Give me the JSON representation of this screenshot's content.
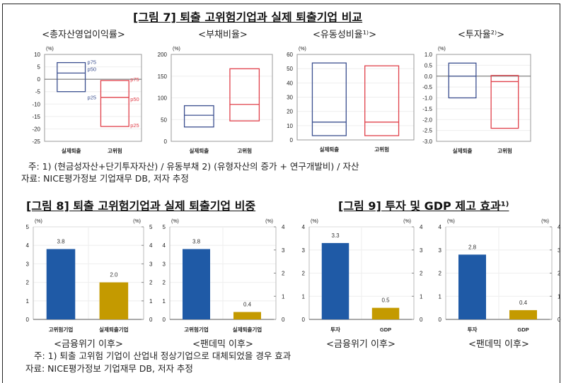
{
  "fig7": {
    "title": "[그림 7] 퇴출 고위험기업과 실제 퇴출기업 비교",
    "note1": "주: 1) (현금성자산+단기투자자산) / 유동부채   2) (유형자산의 증가 + 연구개발비) / 자산",
    "source": "자료: NICE평가정보 기업재무 DB, 저자 추정"
  },
  "fig8": {
    "title": "[그림 8] 퇴출 고위험기업과 실제 퇴출기업 비중"
  },
  "fig9": {
    "title": "[그림 9] 투자 및 GDP 제고 효과¹⁾"
  },
  "bottom_note": "주: 1) 퇴출 고위험 기업이 산업내 정상기업으로 대체되었을 경우 효과",
  "bottom_source": "자료: NICE평가정보 기업재무 DB, 저자 추정",
  "colors": {
    "blue_box": "#3b4f8f",
    "red_box": "#e0404a",
    "blue_bar": "#1f5aa6",
    "gold_bar": "#c49a00"
  },
  "chart_data": [
    {
      "type": "box",
      "title": "<총자산영업이익률>",
      "unit": "(%)",
      "ylim": [
        -25,
        10
      ],
      "yticks": [
        10,
        5,
        0,
        -5,
        -10,
        -15,
        -20,
        -25
      ],
      "tick_labels": [
        "10",
        "5",
        "0",
        "-5",
        "-10",
        "-15",
        "-20",
        "-25"
      ],
      "zero_line": true,
      "categories": [
        "실제퇴출",
        "고위험"
      ],
      "series": [
        {
          "p25": -5,
          "p50": 2.5,
          "p75": 6.7
        },
        {
          "p25": -19,
          "p50": -7.3,
          "p75": -0.5
        }
      ],
      "labels": [
        [
          "p75",
          "p50",
          "p25"
        ],
        [
          "p75",
          "p50",
          "p25"
        ]
      ]
    },
    {
      "type": "box",
      "title": "<부채비율>",
      "unit": "(%)",
      "ylim": [
        0,
        200
      ],
      "yticks": [
        200,
        150,
        100,
        50,
        0
      ],
      "tick_labels": [
        "200",
        "150",
        "100",
        "50",
        "0"
      ],
      "categories": [
        "실제퇴출",
        "고위험"
      ],
      "series": [
        {
          "p25": 33,
          "p50": 60,
          "p75": 82
        },
        {
          "p25": 47,
          "p50": 85,
          "p75": 167
        }
      ]
    },
    {
      "type": "box",
      "title": "<유동성비율¹⁾>",
      "unit": "(%)",
      "ylim": [
        0,
        60
      ],
      "yticks": [
        60,
        50,
        40,
        30,
        20,
        10,
        0
      ],
      "tick_labels": [
        "60",
        "50",
        "40",
        "30",
        "20",
        "10",
        "0"
      ],
      "categories": [
        "실제퇴출",
        "고위험"
      ],
      "series": [
        {
          "p25": 3,
          "p50": 12.5,
          "p75": 54
        },
        {
          "p25": 3,
          "p50": 12.5,
          "p75": 52
        }
      ]
    },
    {
      "type": "box",
      "title": "<투자율²⁾>",
      "unit": "(%)",
      "ylim": [
        -3,
        1
      ],
      "yticks": [
        1,
        0.5,
        0,
        -0.5,
        -1,
        -1.5,
        -2,
        -2.5,
        -3
      ],
      "tick_labels": [
        "1.0",
        "0.5",
        "0.0",
        "-0.5",
        "-1.0",
        "-1.5",
        "-2.0",
        "-2.5",
        "-3.0"
      ],
      "zero_line": true,
      "categories": [
        "실제퇴출",
        "고위험"
      ],
      "series": [
        {
          "p25": -1.0,
          "p50": 0.0,
          "p75": 0.6
        },
        {
          "p25": -2.4,
          "p50": -0.25,
          "p75": 0.03
        }
      ]
    },
    {
      "type": "bar",
      "title": "<금융위기 이후>",
      "unit": "(%)",
      "ylim": [
        0,
        5
      ],
      "yticks": [
        0,
        1,
        2,
        3,
        4,
        5
      ],
      "tick_labels": [
        "0",
        "1",
        "2",
        "3",
        "4",
        "5"
      ],
      "y2ticks": [
        "0",
        "1",
        "2",
        "3",
        "4",
        "5"
      ],
      "categories": [
        "고위험기업",
        "실제퇴출기업"
      ],
      "values": [
        3.8,
        2.0
      ],
      "value_labels": [
        "3.8",
        "2.0"
      ]
    },
    {
      "type": "bar",
      "title": "<팬데믹 이후>",
      "unit": "(%)",
      "ylim": [
        0,
        5
      ],
      "yticks": [
        0,
        1,
        2,
        3,
        4,
        5
      ],
      "tick_labels": [
        "0",
        "1",
        "2",
        "3",
        "4",
        "5"
      ],
      "y2ticks": [
        "0",
        "1",
        "2",
        "3",
        "4"
      ],
      "categories": [
        "고위험기업",
        "실제퇴출기업"
      ],
      "values": [
        3.8,
        0.4
      ],
      "value_labels": [
        "3.8",
        "0.4"
      ]
    },
    {
      "type": "bar",
      "title": "<금융위기 이후>",
      "unit": "(%)",
      "ylim": [
        0,
        4
      ],
      "yticks": [
        0,
        1,
        2,
        3,
        4
      ],
      "tick_labels": [
        "0",
        "1",
        "2",
        "3",
        "4"
      ],
      "y2ticks": [
        "0",
        "1",
        "2",
        "3",
        "4"
      ],
      "categories": [
        "투자",
        "GDP"
      ],
      "values": [
        3.3,
        0.5
      ],
      "value_labels": [
        "3.3",
        "0.5"
      ]
    },
    {
      "type": "bar",
      "title": "<팬데믹 이후>",
      "unit": "(%)",
      "ylim": [
        0,
        4
      ],
      "yticks": [
        0,
        1,
        2,
        3,
        4
      ],
      "tick_labels": [
        "0",
        "1",
        "2",
        "3",
        "4"
      ],
      "y2ticks": [
        "0",
        "1",
        "2",
        "3",
        "4"
      ],
      "categories": [
        "투자",
        "GDP"
      ],
      "values": [
        2.8,
        0.4
      ],
      "value_labels": [
        "2.8",
        "0.4"
      ]
    }
  ]
}
